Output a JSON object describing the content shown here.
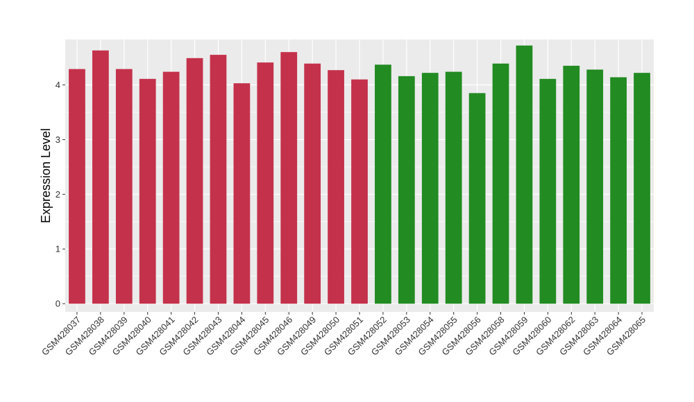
{
  "chart_data": {
    "type": "bar",
    "title": "",
    "xlabel": "",
    "ylabel": "Expression Level",
    "ylim": [
      -0.15,
      4.83
    ],
    "yticks": [
      0,
      1,
      2,
      3,
      4
    ],
    "grid": true,
    "legend": "none",
    "colors": {
      "group1": "#c4314b",
      "group2": "#228b22",
      "panel": "#ebebeb",
      "grid": "#ffffff",
      "tick": "#333333"
    },
    "categories": [
      "GSM428037",
      "GSM428038",
      "GSM428039",
      "GSM428040",
      "GSM428041",
      "GSM428042",
      "GSM428043",
      "GSM428044",
      "GSM428045",
      "GSM428046",
      "GSM428049",
      "GSM428050",
      "GSM428051",
      "GSM428052",
      "GSM428053",
      "GSM428054",
      "GSM428055",
      "GSM428056",
      "GSM428058",
      "GSM428059",
      "GSM428060",
      "GSM428062",
      "GSM428063",
      "GSM428064",
      "GSM428065"
    ],
    "values": [
      4.29,
      4.63,
      4.29,
      4.11,
      4.24,
      4.49,
      4.55,
      4.03,
      4.41,
      4.6,
      4.39,
      4.27,
      4.1,
      4.37,
      4.16,
      4.22,
      4.24,
      3.85,
      4.39,
      4.72,
      4.11,
      4.35,
      4.28,
      4.14,
      4.22
    ],
    "groups": [
      "group1",
      "group1",
      "group1",
      "group1",
      "group1",
      "group1",
      "group1",
      "group1",
      "group1",
      "group1",
      "group1",
      "group1",
      "group1",
      "group2",
      "group2",
      "group2",
      "group2",
      "group2",
      "group2",
      "group2",
      "group2",
      "group2",
      "group2",
      "group2",
      "group2"
    ]
  }
}
